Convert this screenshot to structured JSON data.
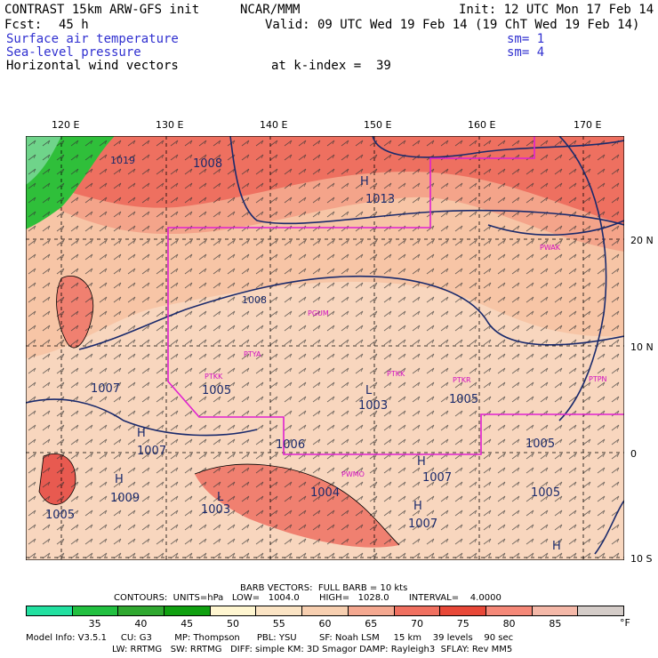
{
  "header": {
    "model": "CONTRAST 15km ARW-GFS init",
    "org": "NCAR/MMM",
    "init": "Init: 12 UTC Mon 17 Feb 14",
    "fcst_label": "Fcst:",
    "fcst_value": "45 h",
    "valid": "Valid: 09 UTC Wed 19 Feb 14 (19 ChT Wed 19 Feb 14)",
    "field1": "Surface air temperature",
    "field2": "Sea-level pressure",
    "field3": "Horizontal wind vectors",
    "sm1": "sm= 1",
    "sm2": "sm= 4",
    "level": "at k-index =  39"
  },
  "map": {
    "lon_labels": [
      "120 E",
      "130 E",
      "140 E",
      "150 E",
      "160 E",
      "170 E"
    ],
    "lat_labels": [
      "20 N",
      "10 N",
      "0",
      "10 S"
    ],
    "pressure_labels": [
      "1019",
      "1008",
      "1013",
      "1008",
      "1007",
      "1005",
      "1003",
      "1005",
      "1006",
      "1004",
      "1007",
      "1005",
      "1005",
      "1009",
      "1003",
      "1005",
      "1007",
      "1007"
    ],
    "high_low_markers": [
      "H",
      "H",
      "H",
      "H",
      "L",
      "L",
      "H",
      "H"
    ],
    "stations": [
      "PWAK",
      "PGUM",
      "PTYA",
      "PTKK",
      "PTPN",
      "PTKK",
      "PTKR",
      "PWMO"
    ],
    "colors": {
      "cold": "#2fbf3a",
      "mid": "#f5c6a8",
      "warm": "#f0725a",
      "hot": "#e8443a",
      "isobar": "#1a2a6c",
      "boundary": "#e020d0"
    }
  },
  "footer": {
    "barb": "BARB VECTORS:  FULL BARB = 10 kts",
    "contours": "CONTOURS:  UNITS=hPa   LOW=   1004.0       HIGH=   1028.0       INTERVAL=    4.0000",
    "model_info_1": "Model Info: V3.5.1     CU: G3        MP: Thompson      PBL: YSU        SF: Noah LSM     15 km    39 levels    90 sec",
    "model_info_2": "LW: RRTMG   SW: RRTMG   DIFF: simple KM: 3D Smagor DAMP: Rayleigh3  SFLAY: Rev MM5"
  },
  "legend": {
    "labels": [
      "35",
      "40",
      "45",
      "50",
      "55",
      "60",
      "65",
      "70",
      "75",
      "80",
      "85"
    ],
    "unit": "°F",
    "colors": [
      "#22e0a0",
      "#22c040",
      "#30a830",
      "#10a010",
      "#fff6d0",
      "#fbe4c4",
      "#f7cfb0",
      "#f4a890",
      "#f07060",
      "#e84838",
      "#f58878",
      "#f4b8a8",
      "#d4ccc8"
    ]
  }
}
